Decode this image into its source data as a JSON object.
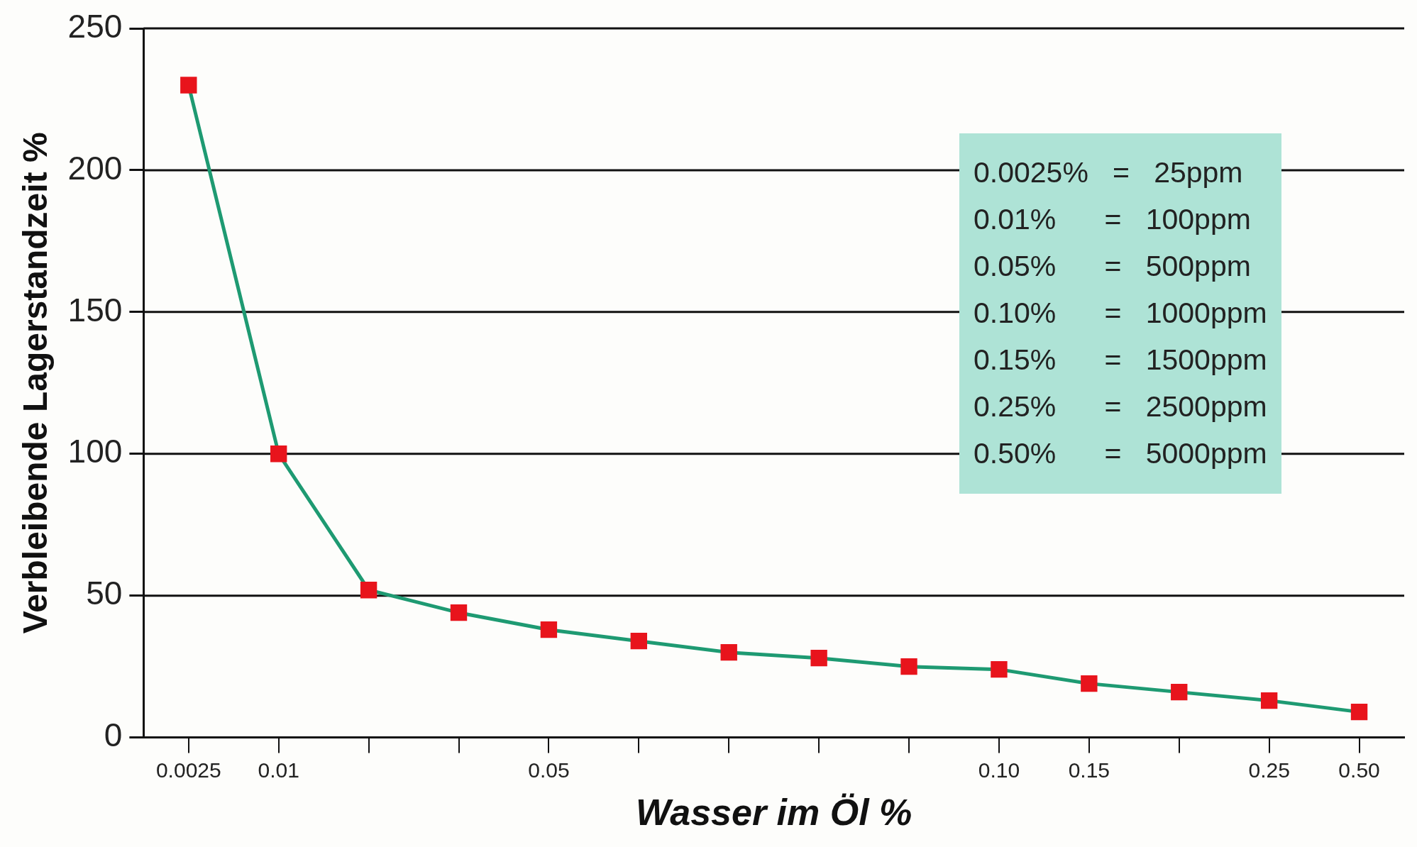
{
  "chart_data": {
    "type": "line",
    "xlabel": "Wasser im Öl %",
    "ylabel": "Verbleibende Lagerstandzeit %",
    "categories": [
      "0.0025",
      "0.01",
      null,
      null,
      "0.05",
      null,
      null,
      null,
      null,
      "0.10",
      "0.15",
      null,
      "0.25",
      "0.50"
    ],
    "series": [
      {
        "color": "#1e9a72",
        "colors": [
          "#e8141c",
          "#e8141c",
          "#e8141c",
          "#e8141c",
          "#e8141c",
          "#e8141c",
          "#e8141c",
          "#e8141c",
          "#e8141c",
          "#e8141c",
          "#e8141c",
          "#e8141c",
          "#e8141c",
          "#e8141c"
        ],
        "values": [
          230,
          100,
          52,
          44,
          38,
          34,
          30,
          28,
          25,
          24,
          19,
          16,
          13,
          9
        ]
      }
    ],
    "ylim": [
      0,
      250
    ],
    "yticks": [
      0,
      50,
      100,
      150,
      200,
      250
    ],
    "grid": "y",
    "legend": false,
    "marker": "square",
    "line_style": "solid",
    "annotations": [
      "0.0025%   =   25ppm",
      "0.01%      =   100ppm",
      "0.05%      =   500ppm",
      "0.10%      =   1000ppm",
      "0.15%      =   1500ppm",
      "0.25%      =   2500ppm",
      "0.50%      =   5000ppm"
    ]
  }
}
